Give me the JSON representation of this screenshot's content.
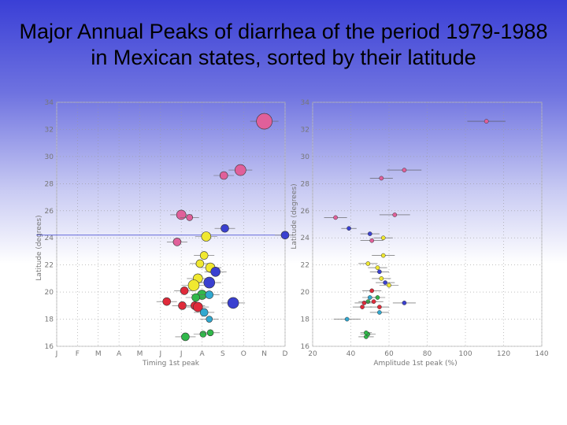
{
  "slide": {
    "title": "Major Annual Peaks of diarrhea of the period 1979-1988 in Mexican states, sorted by their latitude"
  },
  "chart_data": [
    {
      "type": "scatter",
      "xlabel": "Timing 1st peak",
      "ylabel": "Latitude (degrees)",
      "categories": [
        "J",
        "F",
        "M",
        "A",
        "M",
        "J",
        "J",
        "A",
        "S",
        "O",
        "N",
        "D"
      ],
      "ylim": [
        16,
        34
      ],
      "yticks": [
        16,
        18,
        20,
        22,
        24,
        26,
        28,
        30,
        32,
        34
      ],
      "ytick_labels": [
        "16",
        "18",
        "20",
        "22",
        "24",
        "26",
        "28",
        "30",
        "32",
        "34"
      ],
      "grid": true,
      "points": [
        {
          "month": 10.0,
          "lat": 32.6,
          "size": 10,
          "color": "#e0609a"
        },
        {
          "month": 8.85,
          "lat": 29.0,
          "size": 7,
          "color": "#e0609a"
        },
        {
          "month": 8.05,
          "lat": 28.6,
          "size": 5,
          "color": "#e0609a"
        },
        {
          "month": 6.0,
          "lat": 25.7,
          "size": 6,
          "color": "#e0609a"
        },
        {
          "month": 6.4,
          "lat": 25.5,
          "size": 4,
          "color": "#e0609a"
        },
        {
          "month": 8.1,
          "lat": 24.7,
          "size": 5,
          "color": "#3a40d0"
        },
        {
          "month": 5.8,
          "lat": 23.7,
          "size": 5,
          "color": "#e0609a"
        },
        {
          "month": 11.0,
          "lat": 24.2,
          "size": 5,
          "color": "#3a40d0",
          "hline": true
        },
        {
          "month": 7.2,
          "lat": 24.1,
          "size": 6,
          "color": "#f0e830"
        },
        {
          "month": 7.1,
          "lat": 22.7,
          "size": 5,
          "color": "#f0e830"
        },
        {
          "month": 6.9,
          "lat": 22.1,
          "size": 5,
          "color": "#f0e830"
        },
        {
          "month": 7.4,
          "lat": 21.8,
          "size": 6,
          "color": "#f0e830"
        },
        {
          "month": 7.65,
          "lat": 21.5,
          "size": 6,
          "color": "#3a40d0"
        },
        {
          "month": 6.8,
          "lat": 21.0,
          "size": 6,
          "color": "#f0e830"
        },
        {
          "month": 7.35,
          "lat": 20.7,
          "size": 7,
          "color": "#3a40d0"
        },
        {
          "month": 6.6,
          "lat": 20.5,
          "size": 7,
          "color": "#f0e830"
        },
        {
          "month": 6.15,
          "lat": 20.1,
          "size": 5,
          "color": "#e02a3a"
        },
        {
          "month": 7.0,
          "lat": 19.8,
          "size": 6,
          "color": "#30b84a"
        },
        {
          "month": 7.35,
          "lat": 19.8,
          "size": 5,
          "color": "#30a8d0"
        },
        {
          "month": 6.7,
          "lat": 19.6,
          "size": 5,
          "color": "#30b84a"
        },
        {
          "month": 5.3,
          "lat": 19.3,
          "size": 5,
          "color": "#e02a3a"
        },
        {
          "month": 8.5,
          "lat": 19.2,
          "size": 7,
          "color": "#3a40d0"
        },
        {
          "month": 6.05,
          "lat": 19.0,
          "size": 5,
          "color": "#e02a3a"
        },
        {
          "month": 6.65,
          "lat": 19.0,
          "size": 5,
          "color": "#e02a3a"
        },
        {
          "month": 6.8,
          "lat": 18.9,
          "size": 6,
          "color": "#e02a3a"
        },
        {
          "month": 7.1,
          "lat": 18.5,
          "size": 5,
          "color": "#30a8d0"
        },
        {
          "month": 7.35,
          "lat": 18.0,
          "size": 4,
          "color": "#30a8d0"
        },
        {
          "month": 6.2,
          "lat": 16.7,
          "size": 5,
          "color": "#30b84a"
        },
        {
          "month": 7.05,
          "lat": 16.9,
          "size": 4,
          "color": "#30b84a"
        },
        {
          "month": 7.4,
          "lat": 17.0,
          "size": 4,
          "color": "#30b84a"
        }
      ]
    },
    {
      "type": "scatter",
      "xlabel": "Amplitude 1st peak (%)",
      "ylabel": "Latitude (degrees)",
      "xlim": [
        20,
        140
      ],
      "xticks": [
        20,
        40,
        60,
        80,
        100,
        120,
        140
      ],
      "xtick_labels": [
        "20",
        "40",
        "60",
        "80",
        "100",
        "120",
        "140"
      ],
      "ylim": [
        16,
        34
      ],
      "yticks": [
        16,
        18,
        20,
        22,
        24,
        26,
        28,
        30,
        32,
        34
      ],
      "ytick_labels": [
        "16",
        "18",
        "20",
        "22",
        "24",
        "26",
        "28",
        "30",
        "32",
        "34"
      ],
      "grid": true,
      "points": [
        {
          "amp": 111,
          "lat": 32.6,
          "err": 10,
          "color": "#e0609a"
        },
        {
          "amp": 68,
          "lat": 29.0,
          "err": 9,
          "color": "#e0609a"
        },
        {
          "amp": 56,
          "lat": 28.4,
          "err": 6,
          "color": "#e0609a"
        },
        {
          "amp": 32,
          "lat": 25.5,
          "err": 6,
          "color": "#e0609a"
        },
        {
          "amp": 63,
          "lat": 25.7,
          "err": 8,
          "color": "#e0609a"
        },
        {
          "amp": 39,
          "lat": 24.7,
          "err": 4,
          "color": "#3a40d0"
        },
        {
          "amp": 50,
          "lat": 24.3,
          "err": 5,
          "color": "#3a40d0"
        },
        {
          "amp": 51,
          "lat": 23.8,
          "err": 6,
          "color": "#e0609a"
        },
        {
          "amp": 57,
          "lat": 24.0,
          "err": 5,
          "color": "#f0e830"
        },
        {
          "amp": 57,
          "lat": 22.7,
          "err": 6,
          "color": "#f0e830"
        },
        {
          "amp": 49,
          "lat": 22.1,
          "err": 5,
          "color": "#f0e830"
        },
        {
          "amp": 54,
          "lat": 21.8,
          "err": 5,
          "color": "#f0e830"
        },
        {
          "amp": 55,
          "lat": 21.5,
          "err": 5,
          "color": "#3a40d0"
        },
        {
          "amp": 56,
          "lat": 21.0,
          "err": 5,
          "color": "#f0e830"
        },
        {
          "amp": 58,
          "lat": 20.7,
          "err": 5,
          "color": "#3a40d0"
        },
        {
          "amp": 60,
          "lat": 20.5,
          "err": 5,
          "color": "#f0e830"
        },
        {
          "amp": 51,
          "lat": 20.1,
          "err": 5,
          "color": "#e02a3a"
        },
        {
          "amp": 54,
          "lat": 19.6,
          "err": 4,
          "color": "#30b84a"
        },
        {
          "amp": 50,
          "lat": 19.6,
          "err": 4,
          "color": "#30a8d0"
        },
        {
          "amp": 49,
          "lat": 19.3,
          "err": 5,
          "color": "#30b84a"
        },
        {
          "amp": 47,
          "lat": 19.2,
          "err": 5,
          "color": "#e02a3a"
        },
        {
          "amp": 68,
          "lat": 19.2,
          "err": 6,
          "color": "#3a40d0"
        },
        {
          "amp": 46,
          "lat": 18.9,
          "err": 5,
          "color": "#e02a3a"
        },
        {
          "amp": 55,
          "lat": 18.9,
          "err": 5,
          "color": "#e02a3a"
        },
        {
          "amp": 52,
          "lat": 19.3,
          "err": 5,
          "color": "#e02a3a"
        },
        {
          "amp": 55,
          "lat": 18.5,
          "err": 5,
          "color": "#30a8d0"
        },
        {
          "amp": 38,
          "lat": 18.0,
          "err": 7,
          "color": "#30a8d0"
        },
        {
          "amp": 48,
          "lat": 16.7,
          "err": 4,
          "color": "#30b84a"
        },
        {
          "amp": 49,
          "lat": 16.9,
          "err": 4,
          "color": "#30b84a"
        },
        {
          "amp": 48,
          "lat": 17.0,
          "err": 3,
          "color": "#30b84a"
        }
      ]
    }
  ]
}
